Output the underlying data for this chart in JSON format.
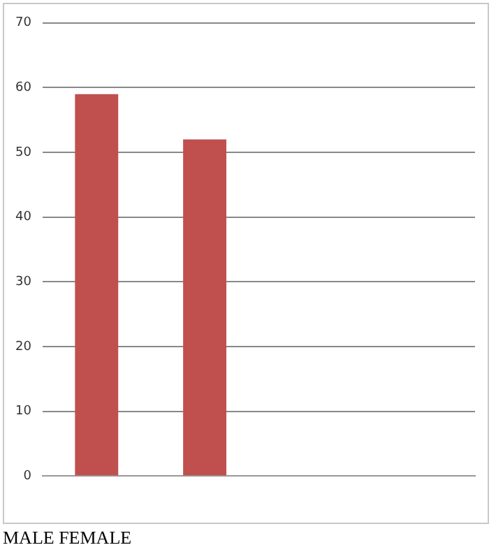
{
  "chart_data": {
    "type": "bar",
    "categories": [
      null,
      null,
      null,
      null
    ],
    "values": [
      59,
      52,
      null,
      null
    ],
    "color": "#c0504d",
    "ylim": [
      0,
      70
    ],
    "yticks": [
      0,
      10,
      20,
      30,
      40,
      50,
      60,
      70
    ],
    "grid": "y",
    "legend": false,
    "annotations": [
      "MALE FEMALE"
    ]
  }
}
